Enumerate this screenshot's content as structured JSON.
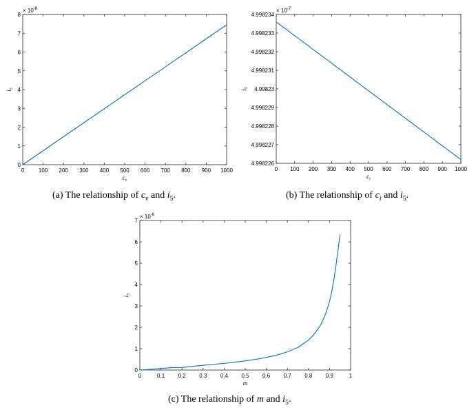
{
  "chart_data": [
    {
      "id": "a",
      "type": "line",
      "xlabel_var": "c",
      "xlabel_sub": "v",
      "ylabel_var": "i",
      "ylabel_sub": "5",
      "xlim": [
        0,
        1000
      ],
      "ylim": [
        0,
        8
      ],
      "exponent_text": "× 10",
      "exponent_power": "-8",
      "xticks": [
        0,
        100,
        200,
        300,
        400,
        500,
        600,
        700,
        800,
        900,
        1000
      ],
      "xtick_labels": [
        "0",
        "100",
        "200",
        "300",
        "400",
        "500",
        "600",
        "700",
        "800",
        "900",
        "1000"
      ],
      "yticks": [
        0,
        1,
        2,
        3,
        4,
        5,
        6,
        7,
        8
      ],
      "ytick_labels": [
        "0",
        "1",
        "2",
        "3",
        "4",
        "5",
        "6",
        "7",
        "8"
      ],
      "series": [
        {
          "x": [
            0,
            1000
          ],
          "y": [
            0,
            7.45
          ]
        }
      ],
      "line_color": "#0072bd",
      "caption_prefix": "(a) The relationship of ",
      "caption_var": "c",
      "caption_sub": "v",
      "caption_mid": " and ",
      "caption_var2": "i",
      "caption_sub2": "5",
      "caption_end": "."
    },
    {
      "id": "b",
      "type": "line",
      "xlabel_var": "c",
      "xlabel_sub": "i",
      "ylabel_var": "i",
      "ylabel_sub": "5",
      "xlim": [
        0,
        1000
      ],
      "ylim": [
        4.998226,
        4.998234
      ],
      "exponent_text": "× 10",
      "exponent_power": "-7",
      "xticks": [
        0,
        100,
        200,
        300,
        400,
        500,
        600,
        700,
        800,
        900,
        1000
      ],
      "xtick_labels": [
        "0",
        "100",
        "200",
        "300",
        "400",
        "500",
        "600",
        "700",
        "800",
        "900",
        "1000"
      ],
      "yticks": [
        4.998226,
        4.998227,
        4.998228,
        4.998229,
        4.99823,
        4.998231,
        4.998232,
        4.998233,
        4.998234
      ],
      "ytick_labels": [
        "4.998226",
        "4.998227",
        "4.998228",
        "4.998229",
        "4.99823",
        "4.998231",
        "4.998232",
        "4.998233",
        "4.998234"
      ],
      "series": [
        {
          "x": [
            0,
            1000
          ],
          "y": [
            4.9982336,
            4.9982262
          ]
        }
      ],
      "line_color": "#0072bd",
      "caption_prefix": "(b) The relationship of ",
      "caption_var": "c",
      "caption_sub": "i",
      "caption_mid": " and ",
      "caption_var2": "i",
      "caption_sub2": "5",
      "caption_end": "."
    },
    {
      "id": "c",
      "type": "line",
      "xlabel_var": "m",
      "xlabel_sub": "",
      "ylabel_var": "i",
      "ylabel_sub": "5",
      "xlim": [
        0,
        1
      ],
      "ylim": [
        0,
        7
      ],
      "exponent_text": "× 10",
      "exponent_power": "-6",
      "xticks": [
        0,
        0.1,
        0.2,
        0.3,
        0.4,
        0.5,
        0.6,
        0.7,
        0.8,
        0.9,
        1
      ],
      "xtick_labels": [
        "0",
        "0.1",
        "0.2",
        "0.3",
        "0.4",
        "0.5",
        "0.6",
        "0.7",
        "0.8",
        "0.9",
        "1"
      ],
      "yticks": [
        0,
        1,
        2,
        3,
        4,
        5,
        6,
        7
      ],
      "ytick_labels": [
        "0",
        "1",
        "2",
        "3",
        "4",
        "5",
        "6",
        "7"
      ],
      "series": [
        {
          "x": [
            0,
            0.05,
            0.1,
            0.15,
            0.2,
            0.25,
            0.3,
            0.35,
            0.4,
            0.45,
            0.5,
            0.55,
            0.6,
            0.65,
            0.7,
            0.75,
            0.8,
            0.82,
            0.84,
            0.86,
            0.88,
            0.9,
            0.91,
            0.92,
            0.93,
            0.94,
            0.95
          ],
          "y": [
            0.0,
            0.033,
            0.07,
            0.11,
            0.12,
            0.17,
            0.22,
            0.27,
            0.31,
            0.37,
            0.43,
            0.5,
            0.59,
            0.7,
            0.85,
            1.06,
            1.4,
            1.6,
            1.85,
            2.15,
            2.6,
            3.2,
            3.65,
            4.2,
            4.85,
            5.6,
            6.35
          ]
        }
      ],
      "line_color": "#0072bd",
      "caption_prefix": "(c) The relationship of ",
      "caption_var": "m",
      "caption_sub": "",
      "caption_mid": " and ",
      "caption_var2": "i",
      "caption_sub2": "5",
      "caption_end": "."
    }
  ]
}
